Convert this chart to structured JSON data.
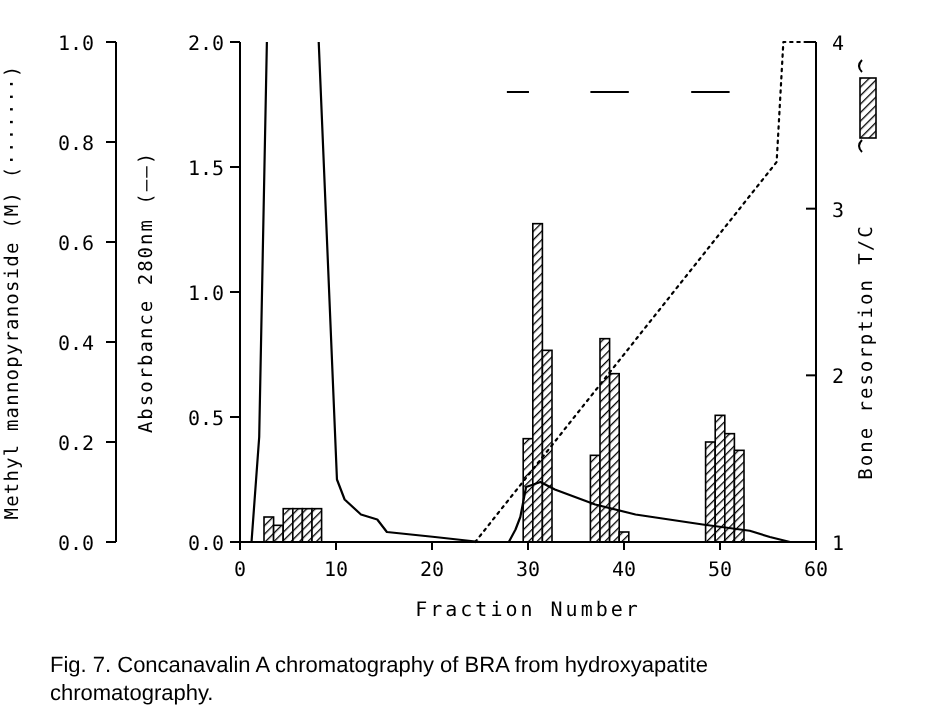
{
  "chart_data": {
    "type": "line",
    "xlabel": "Fraction Number",
    "ylabel": "Absorbance 280nm (——)",
    "y2label": "Bone resorption T/C",
    "y3label": "Methyl mannopyranoside (M) (·······)",
    "xlim": [
      0,
      60
    ],
    "xticks": [
      0,
      10,
      20,
      30,
      40,
      50,
      60
    ],
    "ylim": [
      0,
      2
    ],
    "yticks": [
      {
        "value": 0,
        "label": "0.0"
      },
      {
        "value": 0.5,
        "label": "0.5"
      },
      {
        "value": 1,
        "label": "1.0"
      },
      {
        "value": 1.5,
        "label": "1.5"
      },
      {
        "value": 2,
        "label": "2.0"
      }
    ],
    "y2lim": [
      1,
      4
    ],
    "y2ticks": [
      1,
      2,
      3,
      4
    ],
    "y3lim": [
      0,
      1
    ],
    "y3ticks": [
      {
        "value": 0,
        "label": "0.0"
      },
      {
        "value": 0.2,
        "label": "0.2"
      },
      {
        "value": 0.4,
        "label": "0.4"
      },
      {
        "value": 0.6,
        "label": "0.6"
      },
      {
        "value": 0.8,
        "label": "0.8"
      },
      {
        "value": 1,
        "label": "1.0"
      }
    ],
    "grid": false,
    "series": [
      {
        "type": "bar",
        "axis": "y2",
        "color": "#000000",
        "x": [
          3,
          4,
          5,
          6,
          7,
          8,
          30,
          31,
          32,
          37,
          38,
          39,
          40,
          49,
          50,
          51,
          52
        ],
        "base": [
          1,
          1,
          1,
          1,
          1,
          1,
          1,
          1,
          1,
          1,
          1,
          1,
          1,
          1,
          1,
          1,
          1
        ],
        "values": [
          0.15,
          0.1,
          0.2,
          0.2,
          0.2,
          0.2,
          0.62,
          1.91,
          1.15,
          0.52,
          1.22,
          1.01,
          0.06,
          0.6,
          0.76,
          0.65,
          0.55
        ]
      },
      {
        "axis": "y",
        "color": "#000000",
        "line_style": "solid",
        "x": [
          1.2,
          2,
          2.8,
          5,
          8.2,
          10.1,
          10.9,
          12.6,
          14.3,
          15.3,
          20.3,
          25,
          28,
          28.7,
          29.2,
          29.8,
          31.3,
          32.8,
          37,
          41.2,
          48.2,
          53.1,
          55.2,
          57.3
        ],
        "values": [
          0,
          0.42,
          2,
          null,
          2,
          0.25,
          0.17,
          0.11,
          0.09,
          0.04,
          0.02,
          0,
          0,
          0.05,
          0.1,
          0.22,
          0.24,
          0.21,
          0.15,
          0.11,
          0.07,
          0.045,
          0.02,
          0
        ]
      },
      {
        "axis": "y3",
        "color": "#000000",
        "line_style": "dotted",
        "x": [
          24.5,
          55.9,
          56.6,
          59.3
        ],
        "values": [
          0,
          0.76,
          1,
          1
        ]
      },
      {
        "axis": "y2",
        "color": "#000000",
        "line_style": "solid",
        "x": [
          27.8,
          30.1,
          33,
          36.5,
          40.5,
          44,
          47,
          51
        ],
        "values": [
          3.7,
          3.7,
          null,
          3.7,
          3.7,
          null,
          3.7,
          3.7
        ]
      }
    ],
    "annotations": [
      "Fig. 7. Concanavalin A chromatography of BRA from hydroxyapatite chromatography."
    ]
  }
}
